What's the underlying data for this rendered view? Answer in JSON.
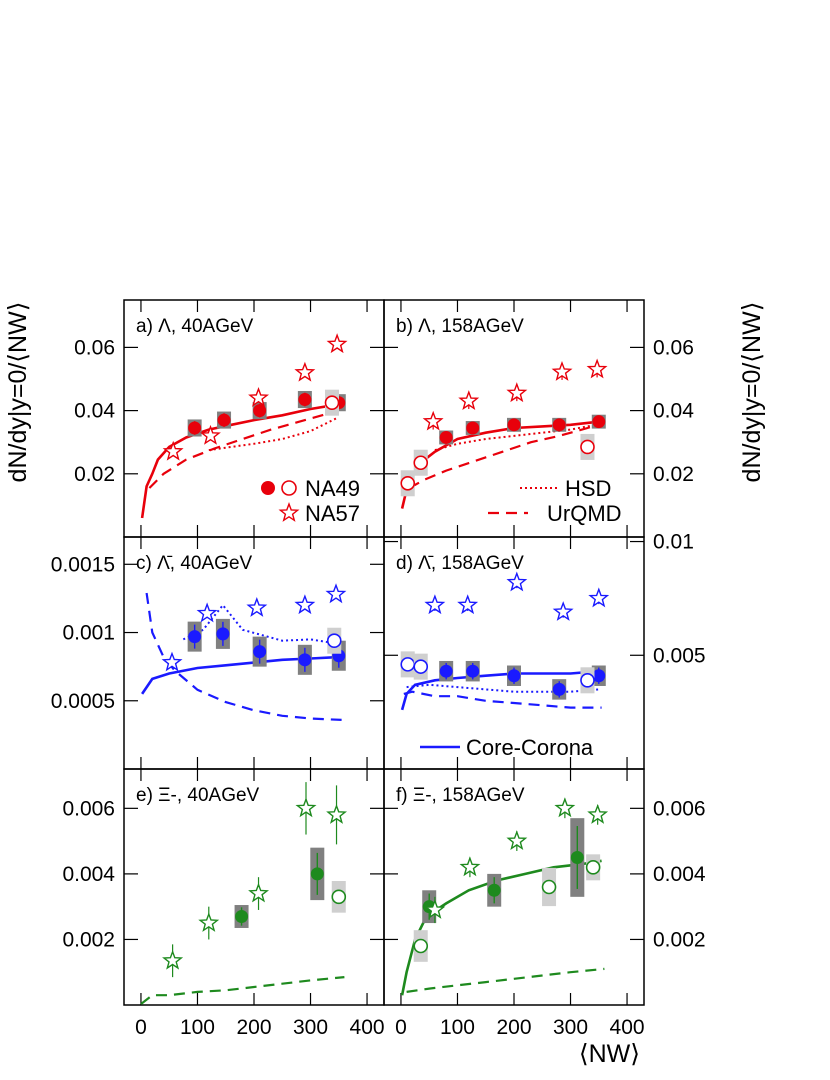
{
  "figure": {
    "y_axis_title_left": "dN/dy|y=0/⟨NW⟩",
    "y_axis_title_right": "dN/dy|y=0/⟨NW⟩",
    "x_axis_title": "⟨NW⟩"
  },
  "colors": {
    "red": "#e8000b",
    "blue": "#1a1aff",
    "green": "#1e8a1e",
    "sys_dark": "#808080",
    "sys_light": "#cfcfcf"
  },
  "legends": {
    "species": [
      {
        "label": "NA49",
        "marker": "circle-filled+open",
        "color": "#e8000b"
      },
      {
        "label": "NA57",
        "marker": "star-open",
        "color": "#e8000b"
      }
    ],
    "models": [
      {
        "label": "HSD",
        "style": "dotted",
        "color": "#e8000b"
      },
      {
        "label": "UrQMD",
        "style": "dashed",
        "color": "#e8000b"
      },
      {
        "label": "Core-Corona",
        "style": "solid",
        "color": "#1a1aff"
      }
    ]
  },
  "chart_data": [
    {
      "id": "a",
      "type": "scatter",
      "title": "a)  Λ, 40AGeV",
      "color": "#e8000b",
      "xlim": [
        -30,
        430
      ],
      "ylim": [
        0.0,
        0.075
      ],
      "yticks": [
        0.02,
        0.04,
        0.06
      ],
      "ytick_labels": [
        "0.02",
        "0.04",
        "0.06"
      ],
      "ytick_side": "left",
      "na49_filled": [
        [
          95,
          0.0345,
          0.0027
        ],
        [
          147,
          0.037,
          0.0027
        ],
        [
          210,
          0.04,
          0.0027
        ],
        [
          290,
          0.0435,
          0.0027
        ],
        [
          350,
          0.0425,
          0.0027
        ]
      ],
      "na49_open": [
        [
          338,
          0.0425,
          0.0012
        ]
      ],
      "na57": [
        [
          57,
          0.027,
          0.0012
        ],
        [
          123,
          0.032,
          0.0012
        ],
        [
          208,
          0.044,
          0.0012
        ],
        [
          290,
          0.052,
          0.0012
        ],
        [
          347,
          0.061,
          0.0012
        ]
      ],
      "core_corona": [
        [
          2,
          0.006
        ],
        [
          10,
          0.016
        ],
        [
          20,
          0.02
        ],
        [
          30,
          0.0245
        ],
        [
          50,
          0.0285
        ],
        [
          80,
          0.0315
        ],
        [
          120,
          0.034
        ],
        [
          160,
          0.0355
        ],
        [
          200,
          0.037
        ],
        [
          250,
          0.0385
        ],
        [
          300,
          0.0405
        ],
        [
          350,
          0.042
        ]
      ],
      "hsd": [
        [
          120,
          0.0275
        ],
        [
          160,
          0.0285
        ],
        [
          200,
          0.0295
        ],
        [
          250,
          0.031
        ],
        [
          300,
          0.0335
        ],
        [
          345,
          0.0375
        ]
      ],
      "urqmd": [
        [
          15,
          0.0155
        ],
        [
          40,
          0.02
        ],
        [
          80,
          0.0245
        ],
        [
          130,
          0.028
        ],
        [
          180,
          0.031
        ],
        [
          230,
          0.034
        ],
        [
          280,
          0.0365
        ],
        [
          330,
          0.039
        ],
        [
          355,
          0.041
        ]
      ]
    },
    {
      "id": "b",
      "type": "scatter",
      "title": "b)  Λ, 158AGeV",
      "color": "#e8000b",
      "xlim": [
        -30,
        430
      ],
      "ylim": [
        0.0,
        0.075
      ],
      "yticks": [
        0.02,
        0.04,
        0.06
      ],
      "ytick_labels": [
        "0.02",
        "0.04",
        "0.06"
      ],
      "ytick_side": "right",
      "na49_filled": [
        [
          80,
          0.0315,
          0.0022
        ],
        [
          127,
          0.0345,
          0.0022
        ],
        [
          200,
          0.0355,
          0.0022
        ],
        [
          280,
          0.0355,
          0.0022
        ],
        [
          350,
          0.0365,
          0.0022
        ]
      ],
      "na49_open": [
        [
          12,
          0.017,
          0.0012
        ],
        [
          35,
          0.0235,
          0.0012
        ],
        [
          330,
          0.0285,
          0.0012
        ]
      ],
      "na57": [
        [
          57,
          0.0365,
          0.0025
        ],
        [
          120,
          0.043,
          0.0025
        ],
        [
          205,
          0.0455,
          0.0025
        ],
        [
          285,
          0.0522,
          0.0025
        ],
        [
          347,
          0.053,
          0.0025
        ]
      ],
      "core_corona": [
        [
          2,
          0.009
        ],
        [
          10,
          0.015
        ],
        [
          20,
          0.0195
        ],
        [
          35,
          0.0235
        ],
        [
          60,
          0.027
        ],
        [
          100,
          0.031
        ],
        [
          150,
          0.033
        ],
        [
          200,
          0.0345
        ],
        [
          250,
          0.035
        ],
        [
          300,
          0.0355
        ],
        [
          350,
          0.0365
        ]
      ],
      "hsd": [
        [
          60,
          0.0275
        ],
        [
          100,
          0.0295
        ],
        [
          150,
          0.031
        ],
        [
          200,
          0.032
        ],
        [
          250,
          0.033
        ],
        [
          300,
          0.034
        ],
        [
          345,
          0.0355
        ]
      ],
      "urqmd": [
        [
          15,
          0.0155
        ],
        [
          40,
          0.018
        ],
        [
          80,
          0.021
        ],
        [
          130,
          0.024
        ],
        [
          180,
          0.027
        ],
        [
          230,
          0.03
        ],
        [
          280,
          0.032
        ],
        [
          330,
          0.0345
        ],
        [
          355,
          0.036
        ]
      ]
    },
    {
      "id": "c",
      "type": "scatter",
      "title": "c)  Λ̄, 40AGeV",
      "color": "#1a1aff",
      "xlim": [
        -30,
        430
      ],
      "ylim": [
        0.0,
        0.0017
      ],
      "yticks": [
        0.0005,
        0.001,
        0.0015
      ],
      "ytick_labels": [
        "0.0005",
        "0.001",
        "0.0015"
      ],
      "ytick_side": "left",
      "na49_filled": [
        [
          95,
          0.00097,
          0.00011
        ],
        [
          145,
          0.00099,
          0.00011
        ],
        [
          210,
          0.00086,
          0.00011
        ],
        [
          290,
          0.0008,
          0.00011
        ],
        [
          350,
          0.00083,
          0.00011
        ]
      ],
      "na49_open": [
        [
          342,
          0.00094,
          3e-05
        ]
      ],
      "na57": [
        [
          55,
          0.00078,
          3e-05
        ],
        [
          117,
          0.00114,
          3e-05
        ],
        [
          205,
          0.00118,
          3e-05
        ],
        [
          290,
          0.0012,
          3e-05
        ],
        [
          345,
          0.00128,
          3e-05
        ]
      ],
      "core_corona": [
        [
          2,
          0.00055
        ],
        [
          20,
          0.00066
        ],
        [
          50,
          0.0007
        ],
        [
          100,
          0.00074
        ],
        [
          150,
          0.00076
        ],
        [
          200,
          0.00078
        ],
        [
          250,
          0.0008
        ],
        [
          300,
          0.00081
        ],
        [
          350,
          0.00082
        ]
      ],
      "hsd": [
        [
          75,
          0.00095
        ],
        [
          110,
          0.00102
        ],
        [
          145,
          0.0012
        ],
        [
          180,
          0.00102
        ],
        [
          250,
          0.00094
        ],
        [
          300,
          0.00095
        ],
        [
          345,
          0.00092
        ]
      ],
      "urqmd": [
        [
          10,
          0.00129
        ],
        [
          20,
          0.001
        ],
        [
          40,
          0.00082
        ],
        [
          60,
          0.00072
        ],
        [
          100,
          0.00058
        ],
        [
          150,
          0.00049
        ],
        [
          200,
          0.00043
        ],
        [
          250,
          0.00039
        ],
        [
          300,
          0.00037
        ],
        [
          355,
          0.00036
        ]
      ]
    },
    {
      "id": "d",
      "type": "scatter",
      "title": "d)  Λ̄, 158AGeV",
      "color": "#1a1aff",
      "xlim": [
        -30,
        430
      ],
      "ylim": [
        0.0,
        0.0102
      ],
      "yticks": [
        0.005,
        0.01
      ],
      "ytick_labels": [
        "0.005",
        "0.01"
      ],
      "ytick_side": "right",
      "na49_filled": [
        [
          80,
          0.0043,
          0.00045
        ],
        [
          127,
          0.0043,
          0.00045
        ],
        [
          200,
          0.0041,
          0.00045
        ],
        [
          280,
          0.0035,
          0.00045
        ],
        [
          350,
          0.0041,
          0.00045
        ]
      ],
      "na49_open": [
        [
          12,
          0.0046,
          0.00025
        ],
        [
          35,
          0.0045,
          0.00025
        ],
        [
          330,
          0.0039,
          0.00025
        ]
      ],
      "na57": [
        [
          60,
          0.0072,
          0.00025
        ],
        [
          118,
          0.0072,
          0.00025
        ],
        [
          205,
          0.0082,
          0.00025
        ],
        [
          287,
          0.0069,
          0.00025
        ],
        [
          350,
          0.0075,
          0.00025
        ]
      ],
      "core_corona": [
        [
          2,
          0.0026
        ],
        [
          10,
          0.0033
        ],
        [
          25,
          0.0037
        ],
        [
          60,
          0.0039
        ],
        [
          100,
          0.004
        ],
        [
          150,
          0.0041
        ],
        [
          200,
          0.0042
        ],
        [
          250,
          0.0042
        ],
        [
          300,
          0.0042
        ],
        [
          350,
          0.0043
        ]
      ],
      "hsd": [
        [
          10,
          0.0036
        ],
        [
          50,
          0.0037
        ],
        [
          100,
          0.0036
        ],
        [
          150,
          0.0035
        ],
        [
          200,
          0.0034
        ],
        [
          250,
          0.0034
        ],
        [
          300,
          0.0034
        ],
        [
          350,
          0.0035
        ]
      ],
      "urqmd": [
        [
          5,
          0.0033
        ],
        [
          20,
          0.0034
        ],
        [
          60,
          0.0032
        ],
        [
          100,
          0.0032
        ],
        [
          150,
          0.003
        ],
        [
          200,
          0.0029
        ],
        [
          250,
          0.0028
        ],
        [
          300,
          0.0027
        ],
        [
          355,
          0.0027
        ]
      ]
    },
    {
      "id": "e",
      "type": "scatter",
      "title": "e)  Ξ-, 40AGeV",
      "color": "#1e8a1e",
      "xlim": [
        -30,
        430
      ],
      "ylim": [
        0.0,
        0.0072
      ],
      "yticks": [
        0.002,
        0.004,
        0.006
      ],
      "ytick_labels": [
        "0.002",
        "0.004",
        "0.006"
      ],
      "ytick_side": "left",
      "na49_filled": [
        [
          178,
          0.0027,
          0.00035
        ],
        [
          312,
          0.004,
          0.0008
        ]
      ],
      "na49_open": [
        [
          350,
          0.0033,
          0.0003
        ]
      ],
      "na57": [
        [
          56,
          0.00135,
          0.0005
        ],
        [
          120,
          0.0025,
          0.0005
        ],
        [
          208,
          0.0034,
          0.0005
        ],
        [
          292,
          0.006,
          0.0008
        ],
        [
          346,
          0.0058,
          0.0009
        ]
      ],
      "core_corona": [],
      "hsd": [],
      "urqmd": [
        [
          0,
          0.0
        ],
        [
          20,
          0.0003
        ],
        [
          50,
          0.0003
        ],
        [
          100,
          0.0004
        ],
        [
          150,
          0.00045
        ],
        [
          200,
          0.00055
        ],
        [
          250,
          0.00065
        ],
        [
          300,
          0.00075
        ],
        [
          360,
          0.00085
        ]
      ]
    },
    {
      "id": "f",
      "type": "scatter",
      "title": "f)  Ξ-, 158AGeV",
      "color": "#1e8a1e",
      "xlim": [
        -30,
        430
      ],
      "ylim": [
        0.0,
        0.0072
      ],
      "yticks": [
        0.002,
        0.004,
        0.006
      ],
      "ytick_labels": [
        "0.002",
        "0.004",
        "0.006"
      ],
      "ytick_side": "right",
      "na49_filled": [
        [
          50,
          0.003,
          0.0005
        ],
        [
          165,
          0.0035,
          0.0005
        ],
        [
          312,
          0.0045,
          0.0012
        ]
      ],
      "na49_open": [
        [
          35,
          0.0018,
          0.0003
        ],
        [
          262,
          0.0036,
          0.0004
        ],
        [
          340,
          0.0042,
          0.0002
        ]
      ],
      "na57": [
        [
          60,
          0.0029,
          0.0004
        ],
        [
          122,
          0.0042,
          0.0003
        ],
        [
          205,
          0.005,
          0.0003
        ],
        [
          290,
          0.006,
          0.0003
        ],
        [
          348,
          0.0058,
          0.0003
        ]
      ],
      "core_corona": [
        [
          2,
          0.0003
        ],
        [
          10,
          0.001
        ],
        [
          25,
          0.002
        ],
        [
          45,
          0.0027
        ],
        [
          80,
          0.0031
        ],
        [
          120,
          0.0035
        ],
        [
          170,
          0.0038
        ],
        [
          220,
          0.004
        ],
        [
          270,
          0.0042
        ],
        [
          320,
          0.0043
        ],
        [
          355,
          0.0044
        ]
      ],
      "hsd": [],
      "urqmd": [
        [
          10,
          0.0004
        ],
        [
          50,
          0.0005
        ],
        [
          100,
          0.0006
        ],
        [
          150,
          0.0007
        ],
        [
          200,
          0.0008
        ],
        [
          250,
          0.0009
        ],
        [
          300,
          0.001
        ],
        [
          360,
          0.0011
        ]
      ]
    }
  ],
  "x_axis": {
    "ticks": [
      0,
      100,
      200,
      300,
      400
    ],
    "tick_labels": [
      "0",
      "100",
      "200",
      "300",
      "400"
    ]
  }
}
